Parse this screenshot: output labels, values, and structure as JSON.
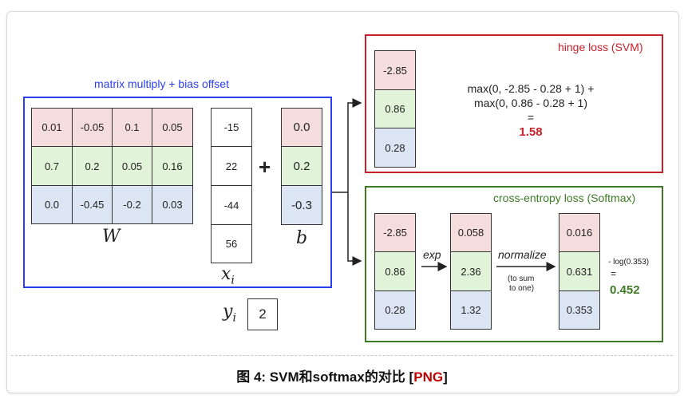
{
  "matrix_multiply": {
    "label": "matrix multiply + bias offset",
    "W": [
      [
        "0.01",
        "-0.05",
        "0.1",
        "0.05"
      ],
      [
        "0.7",
        "0.2",
        "0.05",
        "0.16"
      ],
      [
        "0.0",
        "-0.45",
        "-0.2",
        "0.03"
      ]
    ],
    "W_label": "W",
    "x": [
      "-15",
      "22",
      "-44",
      "56"
    ],
    "x_label": "x",
    "x_sub": "i",
    "plus": "+",
    "b": [
      "0.0",
      "0.2",
      "-0.3"
    ],
    "b_label": "b",
    "y_label": "y",
    "y_sub": "i",
    "y_value": "2"
  },
  "hinge": {
    "title": "hinge loss (SVM)",
    "scores": [
      "-2.85",
      "0.86",
      "0.28"
    ],
    "line1": "max(0, -2.85 - 0.28 + 1) +",
    "line2": "max(0, 0.86 - 0.28 + 1)",
    "equals": "=",
    "result": "1.58"
  },
  "softmax": {
    "title": "cross-entropy loss (Softmax)",
    "scores": [
      "-2.85",
      "0.86",
      "0.28"
    ],
    "exp_label": "exp",
    "exp_values": [
      "0.058",
      "2.36",
      "1.32"
    ],
    "normalize_label": "normalize",
    "normalize_note": [
      "(to sum",
      "to one)"
    ],
    "probs": [
      "0.016",
      "0.631",
      "0.353"
    ],
    "log_expr": "- log(0.353)",
    "equals": "=",
    "result": "0.452"
  },
  "caption": {
    "main": "图 4: SVM和softmax的对比 [",
    "link": "PNG",
    "end": "]"
  },
  "colors": {
    "blue_box": "#2a3ff0",
    "red_box": "#c8202a",
    "green_box": "#3d7a25",
    "row1": "#f6dddd",
    "row2": "#e1f3d8",
    "row3": "#dce5f4"
  }
}
